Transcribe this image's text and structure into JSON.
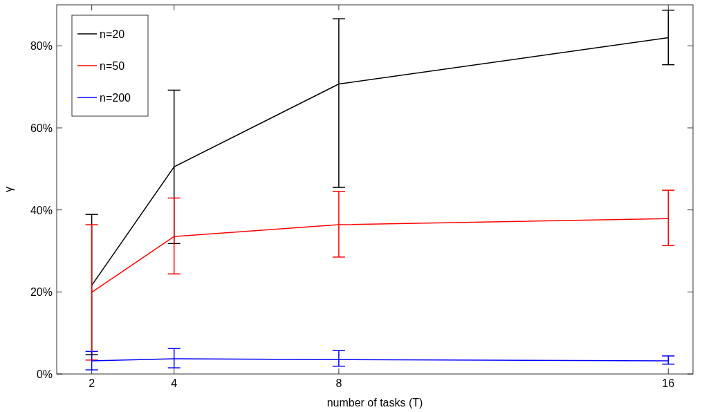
{
  "chart_data": {
    "type": "line",
    "xlabel": "number of tasks (T)",
    "ylabel": "γ",
    "x": [
      2,
      4,
      8,
      16
    ],
    "xlim": [
      1.15,
      16.6
    ],
    "xticks": [
      2,
      4,
      8,
      16
    ],
    "ylim": [
      0,
      90
    ],
    "yticks": [
      {
        "value": 0,
        "label": "0%"
      },
      {
        "value": 20,
        "label": "20%"
      },
      {
        "value": 40,
        "label": "40%"
      },
      {
        "value": 60,
        "label": "60%"
      },
      {
        "value": 80,
        "label": "80%"
      }
    ],
    "series": [
      {
        "name": "n=20",
        "color": "#000000",
        "values": [
          21.6,
          50.5,
          70.7,
          82.0
        ],
        "errors": [
          [
            4.7,
            38.9
          ],
          [
            31.8,
            69.2
          ],
          [
            45.5,
            86.6
          ],
          [
            75.4,
            88.7
          ]
        ]
      },
      {
        "name": "n=50",
        "color": "#ff0000",
        "values": [
          19.9,
          33.5,
          36.4,
          37.9
        ],
        "errors": [
          [
            3.4,
            36.4
          ],
          [
            24.4,
            42.9
          ],
          [
            28.5,
            44.5
          ],
          [
            31.3,
            44.8
          ]
        ]
      },
      {
        "name": "n=200",
        "color": "#0000ff",
        "values": [
          3.2,
          3.7,
          3.5,
          3.2
        ],
        "errors": [
          [
            1.0,
            5.5
          ],
          [
            1.5,
            6.2
          ],
          [
            1.9,
            5.7
          ],
          [
            2.4,
            4.4
          ]
        ]
      }
    ],
    "legend": "top left",
    "grid": false,
    "marker": "none",
    "line_style": "solid"
  }
}
